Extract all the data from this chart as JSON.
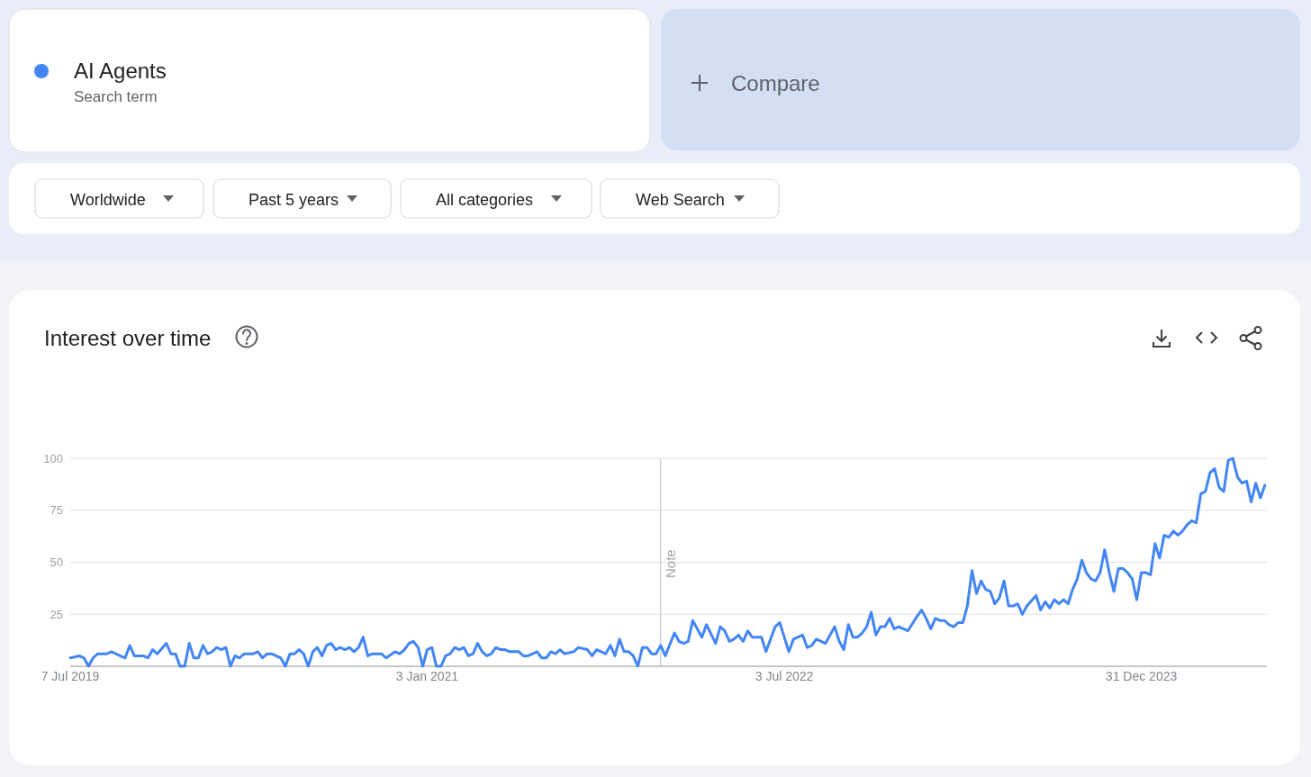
{
  "chart_data": {
    "type": "line",
    "title": "Interest over time",
    "annotations": [
      "Search term",
      "Compare",
      "Worldwide",
      "Past 5 years",
      "All categories",
      "Web Search"
    ],
    "x": [
      "2019-07-07",
      "2019-07-21",
      "2019-07-28",
      "2019-08-04",
      "2019-08-11",
      "2019-08-18",
      "2019-09-01",
      "2019-09-08",
      "2019-09-29",
      "2019-10-06",
      "2019-10-13",
      "2019-10-27",
      "2019-11-03",
      "2019-11-10",
      "2019-11-17",
      "2019-12-01",
      "2019-12-08",
      "2019-12-15",
      "2019-12-22",
      "2019-12-29",
      "2020-01-05",
      "2020-01-12",
      "2020-01-19",
      "2020-01-26",
      "2020-02-02",
      "2020-02-09",
      "2020-02-16",
      "2020-02-23",
      "2020-03-01",
      "2020-03-08",
      "2020-03-15",
      "2020-03-22",
      "2020-03-29",
      "2020-04-12",
      "2020-04-19",
      "2020-04-26",
      "2020-05-03",
      "2020-05-10",
      "2020-05-24",
      "2020-05-31",
      "2020-06-07",
      "2020-06-14",
      "2020-06-21",
      "2020-06-28",
      "2020-07-05",
      "2020-07-12",
      "2020-07-19",
      "2020-07-26",
      "2020-08-02",
      "2020-08-09",
      "2020-08-16",
      "2020-08-23",
      "2020-08-30",
      "2020-09-06",
      "2020-09-13",
      "2020-09-20",
      "2020-09-27",
      "2020-10-04",
      "2020-10-11",
      "2020-10-25",
      "2020-11-01",
      "2020-11-15",
      "2020-11-22",
      "2020-11-29",
      "2020-12-06",
      "2020-12-13",
      "2020-12-20",
      "2020-12-27",
      "2021-01-03",
      "2021-01-10",
      "2021-01-17",
      "2021-01-24",
      "2021-01-31",
      "2021-02-07",
      "2021-02-14",
      "2021-02-21",
      "2021-02-28",
      "2021-03-07",
      "2021-03-14",
      "2021-03-21",
      "2021-03-28",
      "2021-04-04",
      "2021-04-11",
      "2021-04-18",
      "2021-04-25",
      "2021-05-02",
      "2021-05-09",
      "2021-05-23",
      "2021-05-30",
      "2021-06-06",
      "2021-06-20",
      "2021-06-27",
      "2021-07-04",
      "2021-07-11",
      "2021-07-18",
      "2021-07-25",
      "2021-08-01",
      "2021-08-15",
      "2021-08-22",
      "2021-09-05",
      "2021-09-12",
      "2021-09-19",
      "2021-10-03",
      "2021-10-10",
      "2021-10-17",
      "2021-10-24",
      "2021-10-31",
      "2021-11-07",
      "2021-11-14",
      "2021-11-21",
      "2021-11-28",
      "2021-12-05",
      "2021-12-12",
      "2021-12-19",
      "2021-12-26",
      "2022-01-02",
      "2022-01-16",
      "2022-01-23",
      "2022-01-30",
      "2022-02-06",
      "2022-02-13",
      "2022-02-27",
      "2022-03-06",
      "2022-03-20",
      "2022-03-27",
      "2022-04-03",
      "2022-04-10",
      "2022-04-17",
      "2022-04-24",
      "2022-05-01",
      "2022-05-08",
      "2022-05-15",
      "2022-05-29",
      "2022-06-05",
      "2022-06-19",
      "2022-06-26",
      "2022-07-10",
      "2022-07-17",
      "2022-07-31",
      "2022-08-07",
      "2022-08-14",
      "2022-08-21",
      "2022-09-04",
      "2022-09-18",
      "2022-09-25",
      "2022-10-02",
      "2022-10-09",
      "2022-10-16",
      "2022-10-23",
      "2022-10-30",
      "2022-11-06",
      "2022-11-13",
      "2022-11-20",
      "2022-11-27",
      "2022-12-04",
      "2022-12-11",
      "2022-12-18",
      "2022-12-25",
      "2023-01-08",
      "2023-01-22",
      "2023-01-29",
      "2023-02-05",
      "2023-02-12",
      "2023-02-19",
      "2023-02-26",
      "2023-03-05",
      "2023-03-12",
      "2023-03-19",
      "2023-03-26",
      "2023-04-02",
      "2023-04-09",
      "2023-04-16",
      "2023-04-23",
      "2023-04-30",
      "2023-05-07",
      "2023-05-14",
      "2023-05-21",
      "2023-05-28",
      "2023-06-04",
      "2023-06-11",
      "2023-06-18",
      "2023-06-25",
      "2023-07-02",
      "2023-07-09",
      "2023-07-23",
      "2023-07-30",
      "2023-08-06",
      "2023-08-13",
      "2023-08-20",
      "2023-08-27",
      "2023-09-03",
      "2023-09-10",
      "2023-09-17",
      "2023-09-24",
      "2023-10-01",
      "2023-10-08",
      "2023-10-15",
      "2023-10-22",
      "2023-10-29",
      "2023-11-05",
      "2023-11-12",
      "2023-11-19",
      "2023-11-26",
      "2023-12-03",
      "2023-12-10",
      "2023-12-17",
      "2023-12-24",
      "2023-12-31",
      "2024-01-07",
      "2024-01-14",
      "2024-01-21",
      "2024-01-28",
      "2024-02-04",
      "2024-02-11",
      "2024-02-18",
      "2024-02-25",
      "2024-03-03",
      "2024-03-10",
      "2024-03-17",
      "2024-03-24",
      "2024-03-31",
      "2024-04-07",
      "2024-04-14",
      "2024-04-21",
      "2024-04-28",
      "2024-05-05",
      "2024-05-12",
      "2024-05-19",
      "2024-05-26",
      "2024-06-02",
      "2024-06-09",
      "2024-06-16",
      "2024-06-23",
      "2024-06-30",
      "2024-07-07"
    ],
    "series": [
      {
        "name": "AI Agents",
        "color": "#4285f4",
        "values": [
          4,
          5,
          4,
          0,
          4,
          6,
          6,
          7,
          4,
          10,
          5,
          5,
          4,
          8,
          6,
          11,
          6,
          6,
          0,
          0,
          11,
          4,
          4,
          10,
          6,
          7,
          9,
          8,
          9,
          0,
          5,
          4,
          6,
          6,
          7,
          4,
          6,
          6,
          4,
          0,
          6,
          6,
          8,
          6,
          0,
          7,
          9,
          5,
          10,
          11,
          8,
          9,
          8,
          9,
          7,
          9,
          14,
          5,
          6,
          6,
          4,
          7,
          6,
          8,
          11,
          12,
          9,
          0,
          8,
          9,
          0,
          0,
          5,
          6,
          9,
          8,
          9,
          5,
          6,
          11,
          7,
          5,
          6,
          9,
          8,
          8,
          7,
          7,
          5,
          5,
          7,
          4,
          4,
          7,
          6,
          8,
          6,
          7,
          9,
          8,
          5,
          8,
          6,
          10,
          5,
          13,
          7,
          7,
          5,
          0,
          9,
          9,
          6,
          6,
          10,
          5,
          16,
          12,
          11,
          12,
          22,
          14,
          20,
          11,
          19,
          17,
          12,
          13,
          15,
          12,
          17,
          14,
          14,
          7,
          19,
          21,
          7,
          13,
          15,
          9,
          10,
          13,
          11,
          19,
          12,
          8,
          20,
          14,
          14,
          16,
          19,
          26,
          15,
          19,
          19,
          23,
          18,
          19,
          17,
          24,
          27,
          23,
          18,
          23,
          22,
          22,
          20,
          19,
          21,
          21,
          29,
          46,
          35,
          41,
          37,
          36,
          30,
          33,
          41,
          29,
          29,
          30,
          25,
          29,
          34,
          27,
          31,
          28,
          32,
          30,
          32,
          30,
          37,
          42,
          51,
          45,
          42,
          41,
          45,
          56,
          45,
          36,
          47,
          47,
          45,
          42,
          32,
          45,
          45,
          44,
          59,
          52,
          63,
          62,
          65,
          63,
          65,
          68,
          70,
          69,
          83,
          84,
          93,
          95,
          86,
          84,
          99,
          100,
          91,
          88,
          89,
          79,
          88,
          81,
          87
        ]
      }
    ],
    "xlim": [
      "2019-07-07",
      "2024-07-10"
    ],
    "xticks": [
      {
        "value": "2019-07-07",
        "label": "7 Jul 2019"
      },
      {
        "value": "2021-01-03",
        "label": "3 Jan 2021"
      },
      {
        "value": "2022-07-03",
        "label": "3 Jul 2022"
      },
      {
        "value": "2023-12-31",
        "label": "31 Dec 2023"
      }
    ],
    "ylim": [
      0,
      100
    ],
    "yticks": [
      {
        "value": 0,
        "label": null
      },
      25,
      50,
      75,
      100
    ],
    "grid": "y",
    "legend": "top left",
    "ref_lines": [
      {
        "axis": "x",
        "value": "2021-12-26",
        "label": "Note",
        "color": "#bdbdbd"
      }
    ]
  }
}
